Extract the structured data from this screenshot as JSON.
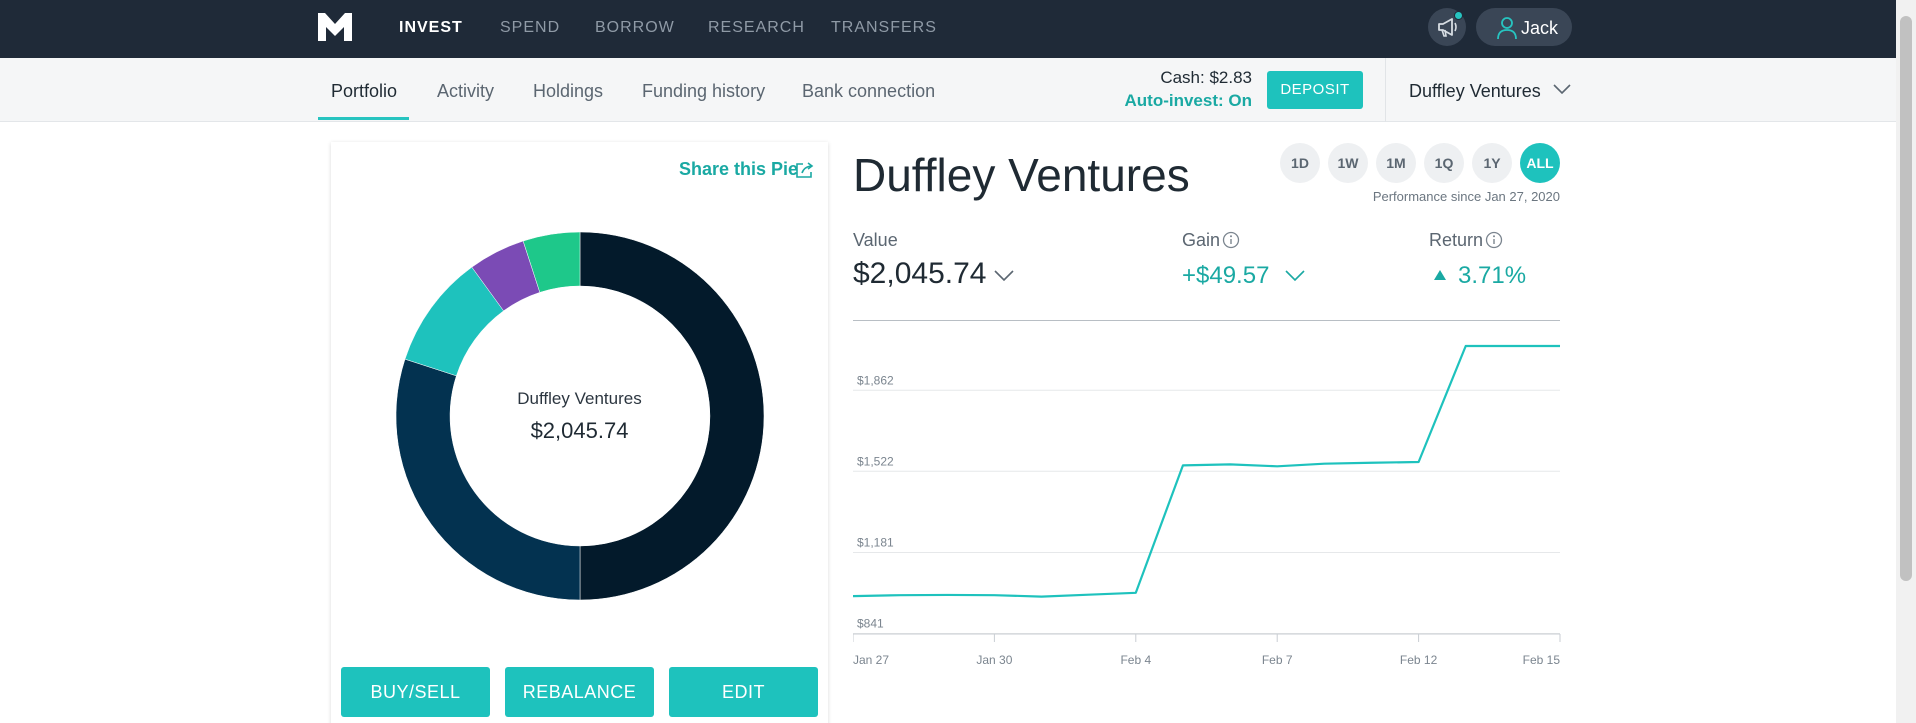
{
  "topnav": {
    "logo_icon": "m1-logo-icon",
    "links": [
      "INVEST",
      "SPEND",
      "BORROW",
      "RESEARCH",
      "TRANSFERS"
    ],
    "active": "INVEST",
    "user_name": "Jack"
  },
  "subnav": {
    "tabs": [
      "Portfolio",
      "Activity",
      "Holdings",
      "Funding history",
      "Bank connection"
    ],
    "active": "Portfolio",
    "cash": "Cash: $2.83",
    "auto_invest": "Auto-invest: On",
    "deposit_label": "DEPOSIT",
    "account": "Duffley Ventures"
  },
  "pie_card": {
    "share_label": "Share this Pie",
    "center_title": "Duffley Ventures",
    "center_value": "$2,045.74",
    "slices": [
      {
        "fraction": 0.5,
        "color": "#031a2b"
      },
      {
        "fraction": 0.3,
        "color": "#033250"
      },
      {
        "fraction": 0.1,
        "color": "#1ec2bd"
      },
      {
        "fraction": 0.05,
        "color": "#7b4bb5"
      },
      {
        "fraction": 0.05,
        "color": "#1ec88a"
      }
    ],
    "buttons": [
      "BUY/SELL",
      "REBALANCE",
      "EDIT"
    ]
  },
  "performance": {
    "title": "Duffley Ventures",
    "ranges": [
      "1D",
      "1W",
      "1M",
      "1Q",
      "1Y",
      "ALL"
    ],
    "active_range": "ALL",
    "since": "Performance since Jan 27, 2020",
    "value_label": "Value",
    "value": "$2,045.74",
    "gain_label": "Gain",
    "gain": "+$49.57",
    "return_label": "Return",
    "return": "3.71%"
  },
  "chart_data": {
    "type": "line",
    "color": "#1ec2bd",
    "x_ticks": [
      "Jan 27",
      "Jan 30",
      "Feb 4",
      "Feb 7",
      "Feb 12",
      "Feb 15"
    ],
    "y_ticks": [
      "$841",
      "$1,181",
      "$1,522",
      "$1,862"
    ],
    "ylim": [
      841,
      2050
    ],
    "x": [
      "Jan 27",
      "Jan 28",
      "Jan 29",
      "Jan 30",
      "Jan 31",
      "Feb 3",
      "Feb 4",
      "Feb 5",
      "Feb 6",
      "Feb 7",
      "Feb 10",
      "Feb 11",
      "Feb 12",
      "Feb 13",
      "Feb 14",
      "Feb 15"
    ],
    "values": [
      1000,
      1004,
      1005,
      1004,
      998,
      1006,
      1014,
      1549,
      1553,
      1545,
      1556,
      1560,
      1563,
      2050,
      2050,
      2050
    ]
  }
}
